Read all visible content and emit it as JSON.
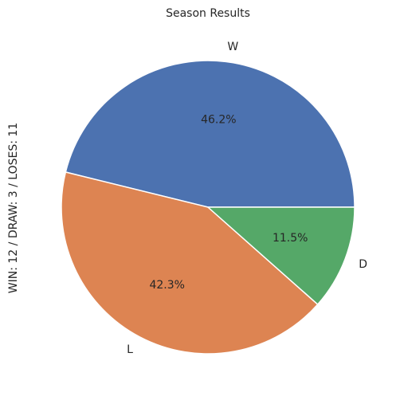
{
  "chart_data": {
    "type": "pie",
    "title": "Season Results",
    "ylabel": "WIN: 12 / DRAW: 3 / LOSES: 11",
    "categories": [
      "W",
      "L",
      "D"
    ],
    "values": [
      12,
      11,
      3
    ],
    "percent_labels": [
      "46.2%",
      "42.3%",
      "11.5%"
    ],
    "colors": [
      "#4c72b0",
      "#dd8452",
      "#55a868"
    ],
    "start_angle_deg": 0,
    "direction": "counterclockwise",
    "legend": false
  }
}
